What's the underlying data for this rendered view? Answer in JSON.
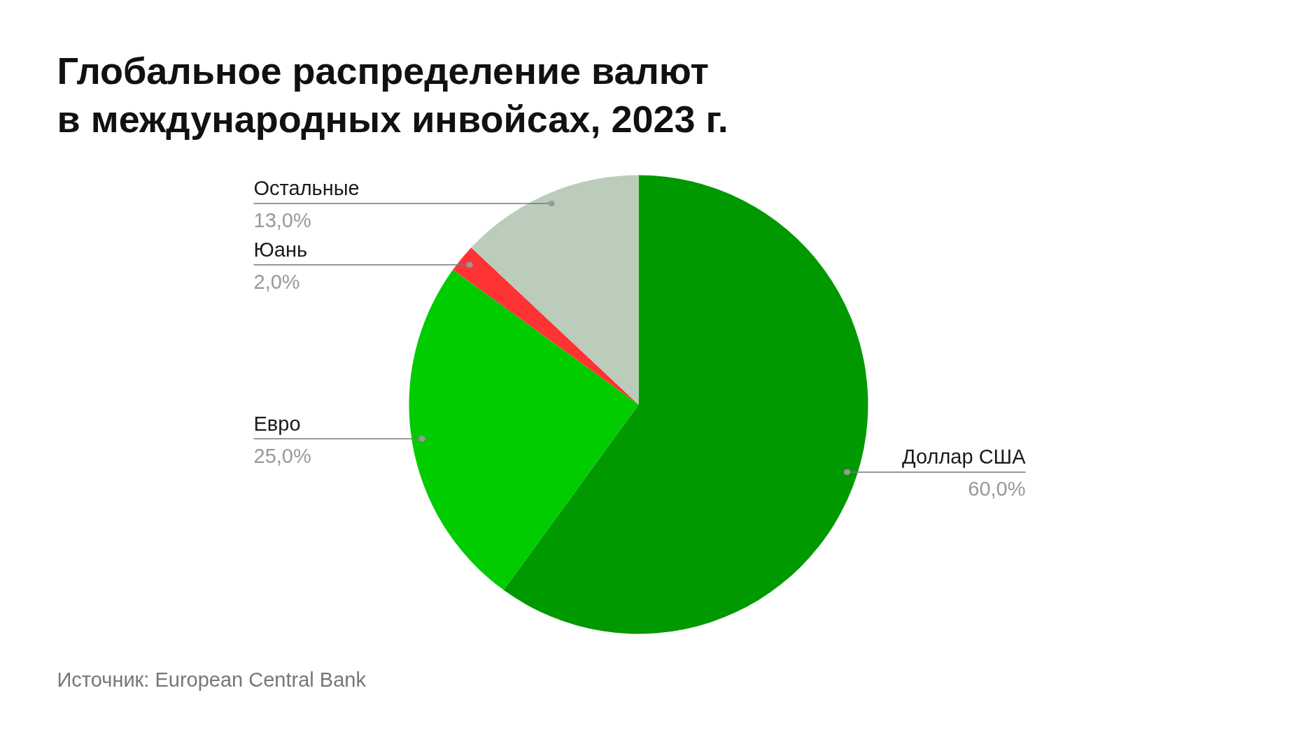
{
  "chart_data": {
    "type": "pie",
    "title": "Глобальное распределение валют\nв международных инвойсах, 2023 г.",
    "categories": [
      "Доллар США",
      "Евро",
      "Юань",
      "Остальные"
    ],
    "values": [
      60,
      25,
      2,
      13
    ],
    "colors": [
      "#009900",
      "#00cc00",
      "#ff3333",
      "#bbccbb"
    ],
    "value_labels": [
      "60,0%",
      "25,0%",
      "2,0%",
      "13,0%"
    ],
    "annotations": [
      "Источник: European Central Bank"
    ]
  }
}
